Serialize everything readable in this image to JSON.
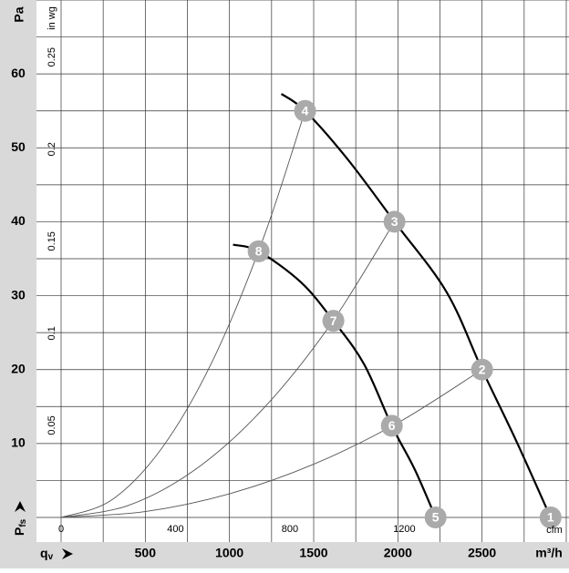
{
  "chart_data": {
    "type": "line",
    "y_label": "Pa",
    "y2_label": "in wg",
    "x_label": "m³/h",
    "x2_label": "cfm",
    "y_symbol": "P",
    "y_symbol_sub": "fs",
    "x_symbol": "q",
    "x_symbol_sub": "v",
    "xlim": [
      0,
      3000
    ],
    "xticks": [
      500,
      1000,
      1500,
      2000,
      2500
    ],
    "x2lim": [
      0,
      1766
    ],
    "x2ticks": [
      0,
      400,
      800,
      1200
    ],
    "ylim": [
      0,
      70
    ],
    "yticks": [
      10,
      20,
      30,
      40,
      50,
      60
    ],
    "y2lim": [
      0,
      0.281
    ],
    "y2ticks": [
      0.05,
      0.1,
      0.15,
      0.2,
      0.25
    ],
    "xgrid": [
      0,
      250,
      500,
      750,
      1000,
      1250,
      1500,
      1750,
      2000,
      2250,
      2500,
      2750,
      3000
    ],
    "ygrid": [
      0,
      5,
      10,
      15,
      20,
      25,
      30,
      35,
      40,
      45,
      50,
      55,
      60,
      65,
      70
    ],
    "grid": true,
    "series": [
      {
        "color": "#000000",
        "line_width": 2.2,
        "x": [
          1308,
          1449,
          1700,
          1980,
          2289,
          2500,
          2700,
          2907
        ],
        "values": [
          57.3,
          55,
          48.5,
          40,
          30.5,
          20,
          10.5,
          0
        ]
      },
      {
        "color": "#000000",
        "line_width": 2.2,
        "x": [
          1021,
          1173,
          1425,
          1617,
          1800,
          1964,
          2100,
          2224
        ],
        "values": [
          36.9,
          36,
          31.8,
          26.6,
          20.7,
          12.4,
          6.5,
          0
        ]
      },
      {
        "color": "#555555",
        "line_width": 0.9,
        "x": [
          0,
          300,
          600,
          900,
          1200,
          1449
        ],
        "values": [
          0,
          2.36,
          9.43,
          21.2,
          37.7,
          55
        ]
      },
      {
        "color": "#555555",
        "line_width": 0.9,
        "x": [
          0,
          400,
          800,
          1200,
          1600,
          1980
        ],
        "values": [
          0,
          1.63,
          6.53,
          14.7,
          26.1,
          40
        ]
      },
      {
        "color": "#555555",
        "line_width": 0.9,
        "x": [
          0,
          500,
          1000,
          1500,
          2000,
          2500
        ],
        "values": [
          0,
          0.8,
          3.2,
          7.2,
          12.8,
          20
        ]
      }
    ],
    "points": [
      {
        "label": "1",
        "x": 2907,
        "y": 0
      },
      {
        "label": "2",
        "x": 2500,
        "y": 20
      },
      {
        "label": "3",
        "x": 1980,
        "y": 40
      },
      {
        "label": "4",
        "x": 1449,
        "y": 55
      },
      {
        "label": "5",
        "x": 2224,
        "y": 0
      },
      {
        "label": "6",
        "x": 1964,
        "y": 12.4
      },
      {
        "label": "7",
        "x": 1617,
        "y": 26.6
      },
      {
        "label": "8",
        "x": 1173,
        "y": 36
      }
    ],
    "point_color": "#aaaaaa"
  }
}
